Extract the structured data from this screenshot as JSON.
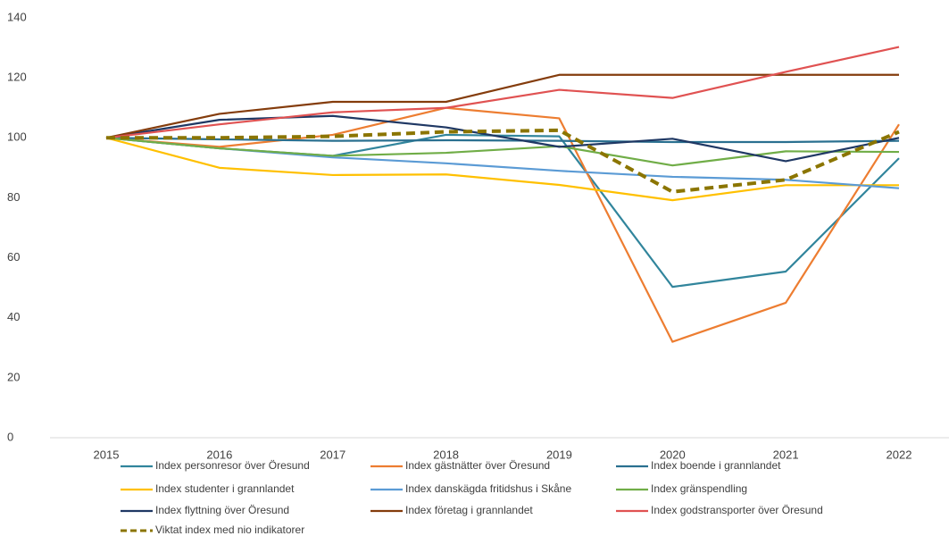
{
  "chart_data": {
    "type": "line",
    "x": [
      "2015",
      "2016",
      "2017",
      "2018",
      "2019",
      "2020",
      "2021",
      "2022"
    ],
    "ylim": [
      0,
      140
    ],
    "yticks": [
      0,
      20,
      40,
      60,
      80,
      100,
      120,
      140
    ],
    "legend": "bottom",
    "series": [
      {
        "name": "Index personresor över Öresund",
        "color": "#31859c",
        "values": [
          100,
          96.5,
          94,
          101,
          100.5,
          50.3,
          55.4,
          93.2
        ]
      },
      {
        "name": "Index gästnätter över Öresund",
        "color": "#ed7d31",
        "values": [
          100,
          97,
          101,
          110,
          106.5,
          32,
          45,
          104.5
        ]
      },
      {
        "name": "Index boende i grannlandet",
        "color": "#2a7090",
        "values": [
          100,
          99.5,
          99,
          99.2,
          99,
          98.6,
          98.6,
          99
        ]
      },
      {
        "name": "Index studenter i grannlandet",
        "color": "#ffc000",
        "values": [
          100,
          90,
          87.6,
          87.8,
          84.3,
          79.2,
          84.2,
          84.2
        ]
      },
      {
        "name": "Index danskägda fritidshus i Skåne",
        "color": "#5b9bd5",
        "values": [
          100,
          96.5,
          93.5,
          91.5,
          89,
          87,
          86,
          83.2
        ]
      },
      {
        "name": "Index gränspendling",
        "color": "#70ad47",
        "values": [
          100,
          96.5,
          94,
          95,
          97.2,
          90.8,
          95.5,
          95.3
        ]
      },
      {
        "name": "Index flyttning över Öresund",
        "color": "#1f3864",
        "values": [
          100,
          106,
          107.3,
          103.5,
          97,
          99.7,
          92.2,
          100
        ]
      },
      {
        "name": "Index företag i grannlandet",
        "color": "#843c0c",
        "values": [
          100,
          108,
          112,
          112,
          121,
          121,
          121,
          121
        ]
      },
      {
        "name": "Index godstransporter över Öresund",
        "color": "#e05252",
        "values": [
          100,
          104.5,
          108.5,
          110,
          116,
          113.3,
          122,
          130.3
        ]
      },
      {
        "name": "Viktat index med nio indikatorer",
        "color": "#8b7500",
        "dashed": true,
        "values": [
          100,
          100,
          100.5,
          102,
          102.5,
          82,
          86,
          102
        ]
      }
    ]
  }
}
